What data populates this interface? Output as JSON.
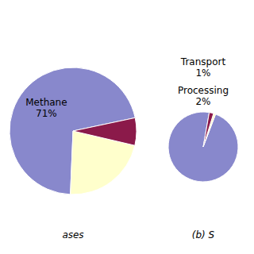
{
  "chart_data": [
    {
      "type": "pie",
      "title": "ases",
      "categories": [
        "Methane",
        null,
        null
      ],
      "values": [
        71,
        22,
        7
      ],
      "value_labels": [
        "71%",
        null,
        null
      ],
      "colors": [
        "#8888cc",
        "#ffffcc",
        "#8b1a4a"
      ]
    },
    {
      "type": "pie",
      "title": "(b) S",
      "categories": [
        null,
        "Transport",
        "Processing"
      ],
      "values": [
        97,
        1,
        2
      ],
      "value_labels": [
        null,
        "1%",
        "2%"
      ],
      "colors": [
        "#8888cc",
        "#ffffcc",
        "#8b1a4a"
      ]
    }
  ]
}
